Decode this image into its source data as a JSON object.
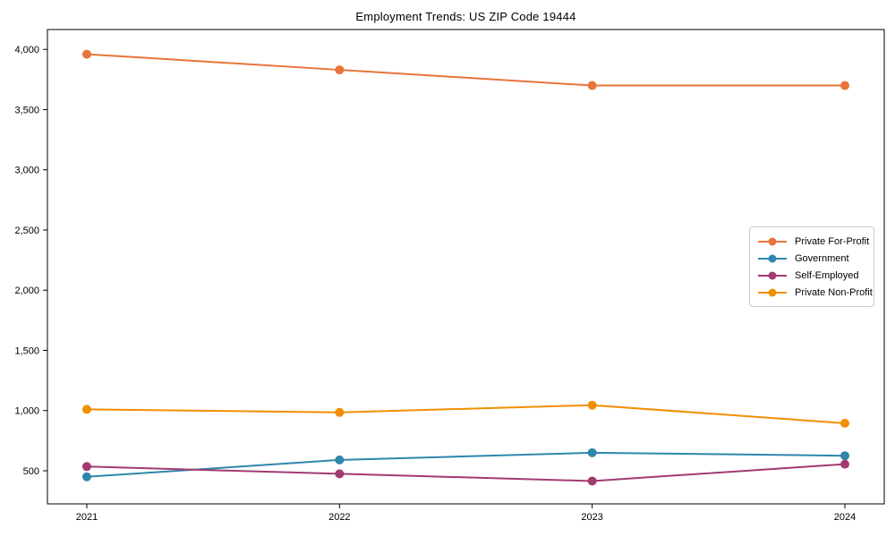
{
  "title": "Employment Trends: US ZIP Code 19444",
  "chart_data": {
    "type": "line",
    "title": "Employment Trends: US ZIP Code 19444",
    "xlabel": "",
    "ylabel": "",
    "categories": [
      "2021",
      "2022",
      "2023",
      "2024"
    ],
    "series": [
      {
        "name": "Private For-Profit",
        "color": "#e8743b",
        "values": [
          3960,
          3830,
          3700,
          3700
        ]
      },
      {
        "name": "Government",
        "color": "#2e86ab",
        "values": [
          450,
          590,
          650,
          625
        ]
      },
      {
        "name": "Self-Employed",
        "color": "#a23b72",
        "values": [
          535,
          475,
          415,
          555
        ]
      },
      {
        "name": "Private Non-Profit",
        "color": "#f18f01",
        "values": [
          1010,
          985,
          1045,
          895
        ]
      }
    ],
    "yticks": [
      500,
      1000,
      1500,
      2000,
      2500,
      3000,
      3500,
      4000
    ],
    "ylim": [
      225,
      4165
    ],
    "grid": false,
    "legend_position": "center right",
    "axis_color": "#000000",
    "marker": "circle"
  }
}
